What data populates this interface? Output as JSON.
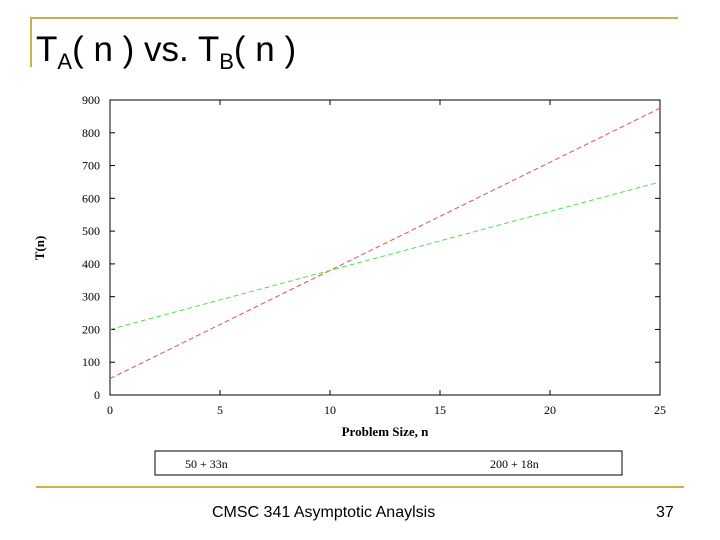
{
  "slide": {
    "title": {
      "part1": "T",
      "sub1": "A",
      "part2": "( n ) vs. T",
      "sub2": "B",
      "part3": "( n )"
    },
    "footer_course": "CMSC 341 Asymptotic Anaylsis",
    "page_number": "37",
    "accent_color": "#c8b446"
  },
  "chart_data": {
    "type": "line",
    "title": "",
    "xlabel": "Problem Size, n",
    "ylabel": "T(n)",
    "xlim": [
      0,
      25
    ],
    "ylim": [
      0,
      900
    ],
    "xticks": [
      0,
      5,
      10,
      15,
      20,
      25
    ],
    "yticks": [
      0,
      100,
      200,
      300,
      400,
      500,
      600,
      700,
      800,
      900
    ],
    "grid": false,
    "legend_position": "bottom",
    "x": [
      0,
      5,
      10,
      15,
      20,
      25
    ],
    "series": [
      {
        "name": "50 + 33n",
        "color": "#e05050",
        "values": [
          50,
          215,
          380,
          545,
          710,
          875
        ]
      },
      {
        "name": "200 + 18n",
        "color": "#50e050",
        "values": [
          200,
          290,
          380,
          470,
          560,
          650
        ]
      }
    ]
  }
}
